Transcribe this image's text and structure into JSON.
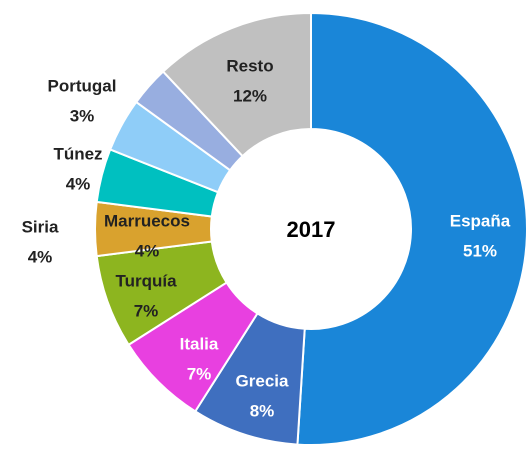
{
  "chart_data": {
    "type": "donut",
    "title": "2017",
    "categories": [
      "España",
      "Grecia",
      "Italia",
      "Turquía",
      "Marruecos",
      "Siria",
      "Túnez",
      "Portugal",
      "Resto"
    ],
    "values": [
      51,
      8,
      7,
      7,
      4,
      4,
      4,
      3,
      12
    ],
    "value_labels": [
      "51%",
      "8%",
      "7%",
      "7%",
      "4%",
      "4%",
      "4%",
      "3%",
      "12%"
    ],
    "colors": [
      "#1a86d8",
      "#3f6fbf",
      "#e840e0",
      "#8db51f",
      "#d9a22e",
      "#00c0c0",
      "#8fcdf8",
      "#98aee0",
      "#c0c0c0"
    ]
  }
}
